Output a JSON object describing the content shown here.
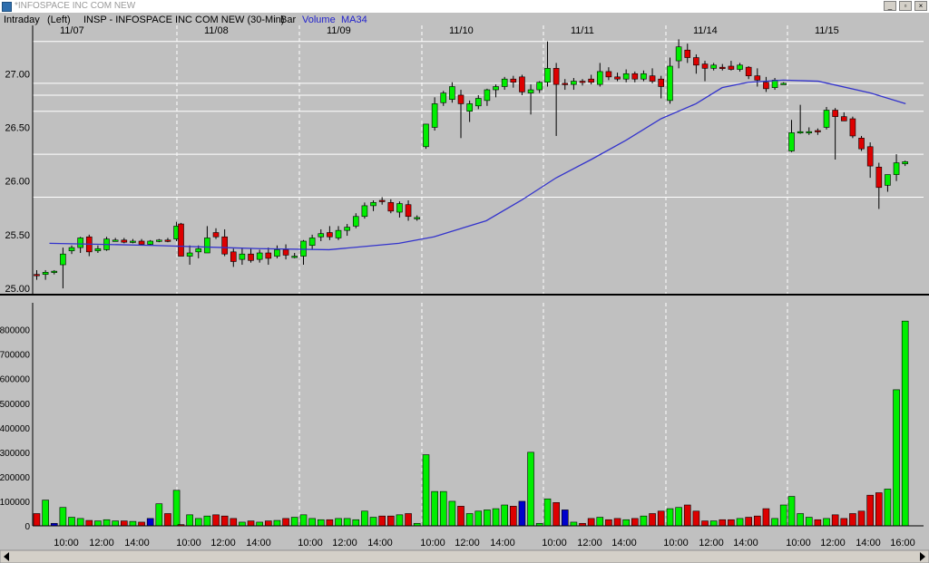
{
  "window": {
    "title": "*INFOSPACE INC COM NEW",
    "minimize_glyph": "_",
    "restore_glyph": "▫",
    "close_glyph": "×"
  },
  "header": {
    "interval": "Intraday",
    "axis_side": "(Left)",
    "symbol_text": "INSP - INFOSPACE INC COM NEW  (30-Min)",
    "bar_label": "Bar",
    "volume_label": "Volume",
    "ma_label": "MA34"
  },
  "colors": {
    "up": "#00ee00",
    "down": "#dd0000",
    "highlight": "#0000cc",
    "ma": "#3333cc",
    "background": "#c0c0c0",
    "gridline": "#ffffff"
  },
  "chart_data": [
    {
      "type": "candlestick",
      "title": "INSP - INFOSPACE INC COM NEW  (30-Min)",
      "ylim": [
        24.95,
        27.45
      ],
      "yticks": [
        "25.00",
        "25.50",
        "26.00",
        "26.50",
        "27.00"
      ],
      "date_labels": [
        "11/07",
        "11/08",
        "11/09",
        "11/10",
        "11/11",
        "11/14",
        "11/15"
      ],
      "horizontal_levels": [
        27.3,
        26.91,
        26.8,
        26.65,
        26.25,
        25.85
      ],
      "ma": {
        "name": "MA34",
        "points": [
          [
            0,
            25.42
          ],
          [
            12,
            25.4
          ],
          [
            24,
            25.37
          ],
          [
            32,
            25.36
          ],
          [
            40,
            25.42
          ],
          [
            44,
            25.48
          ],
          [
            50,
            25.63
          ],
          [
            54,
            25.82
          ],
          [
            58,
            26.03
          ],
          [
            62,
            26.2
          ],
          [
            66,
            26.38
          ],
          [
            70,
            26.58
          ],
          [
            74,
            26.72
          ],
          [
            77,
            26.87
          ],
          [
            80,
            26.92
          ],
          [
            84,
            26.94
          ],
          [
            88,
            26.93
          ],
          [
            94,
            26.82
          ],
          [
            98,
            26.72
          ]
        ]
      },
      "days": [
        {
          "date": "11/07",
          "bars": [
            [
              25.13,
              25.17,
              25.08,
              25.12
            ],
            [
              25.13,
              25.17,
              25.08,
              25.15
            ],
            [
              25.15,
              25.17,
              25.13,
              25.16
            ],
            [
              25.22,
              25.38,
              25.0,
              25.32
            ],
            [
              25.35,
              25.4,
              25.32,
              25.38
            ],
            [
              25.38,
              25.48,
              25.33,
              25.47
            ],
            [
              25.48,
              25.5,
              25.3,
              25.34
            ],
            [
              25.35,
              25.4,
              25.33,
              25.37
            ],
            [
              25.36,
              25.48,
              25.35,
              25.46
            ],
            [
              25.45,
              25.47,
              25.44,
              25.45
            ],
            [
              25.45,
              25.47,
              25.42,
              25.43
            ],
            [
              25.43,
              25.46,
              25.42,
              25.44
            ],
            [
              25.44,
              25.46,
              25.4,
              25.41
            ],
            [
              25.41,
              25.45,
              25.4,
              25.44
            ],
            [
              25.44,
              25.46,
              25.43,
              25.45
            ],
            [
              25.45,
              25.47,
              25.43,
              25.44
            ],
            [
              25.46,
              25.62,
              25.44,
              25.58
            ]
          ]
        },
        {
          "date": "11/08",
          "bars": [
            [
              25.6,
              25.61,
              25.3,
              25.3
            ],
            [
              25.3,
              25.4,
              25.22,
              25.33
            ],
            [
              25.34,
              25.4,
              25.28,
              25.37
            ],
            [
              25.33,
              25.58,
              25.33,
              25.47
            ],
            [
              25.52,
              25.56,
              25.46,
              25.48
            ],
            [
              25.48,
              25.55,
              25.3,
              25.32
            ],
            [
              25.34,
              25.37,
              25.2,
              25.25
            ],
            [
              25.27,
              25.38,
              25.22,
              25.32
            ],
            [
              25.32,
              25.37,
              25.24,
              25.26
            ],
            [
              25.27,
              25.36,
              25.24,
              25.33
            ],
            [
              25.33,
              25.38,
              25.22,
              25.28
            ],
            [
              25.3,
              25.4,
              25.28,
              25.36
            ],
            [
              25.36,
              25.41,
              25.27,
              25.31
            ],
            [
              25.3,
              25.33,
              25.28,
              25.3
            ]
          ]
        },
        {
          "date": "11/09",
          "bars": [
            [
              25.3,
              25.45,
              25.22,
              25.44
            ],
            [
              25.4,
              25.5,
              25.36,
              25.47
            ],
            [
              25.48,
              25.55,
              25.44,
              25.51
            ],
            [
              25.52,
              25.58,
              25.45,
              25.48
            ],
            [
              25.47,
              25.58,
              25.45,
              25.54
            ],
            [
              25.54,
              25.6,
              25.49,
              25.57
            ],
            [
              25.58,
              25.7,
              25.56,
              25.67
            ],
            [
              25.67,
              25.8,
              25.65,
              25.77
            ],
            [
              25.77,
              25.82,
              25.72,
              25.8
            ],
            [
              25.82,
              25.85,
              25.78,
              25.81
            ],
            [
              25.8,
              25.83,
              25.7,
              25.72
            ],
            [
              25.71,
              25.81,
              25.66,
              25.79
            ],
            [
              25.78,
              25.82,
              25.63,
              25.67
            ],
            [
              25.66,
              25.68,
              25.63,
              25.66
            ]
          ]
        },
        {
          "date": "11/10",
          "bars": [
            [
              26.32,
              26.53,
              26.3,
              26.53
            ],
            [
              26.5,
              26.78,
              26.47,
              26.72
            ],
            [
              26.73,
              26.84,
              26.7,
              26.82
            ],
            [
              26.76,
              26.92,
              26.73,
              26.88
            ],
            [
              26.8,
              26.85,
              26.4,
              26.72
            ],
            [
              26.65,
              26.75,
              26.55,
              26.72
            ],
            [
              26.7,
              26.8,
              26.67,
              26.77
            ],
            [
              26.75,
              26.86,
              26.7,
              26.85
            ],
            [
              26.85,
              26.9,
              26.78,
              26.88
            ],
            [
              26.88,
              26.97,
              26.85,
              26.95
            ],
            [
              26.95,
              26.98,
              26.87,
              26.92
            ],
            [
              26.97,
              26.99,
              26.8,
              26.83
            ],
            [
              26.82,
              26.9,
              26.62,
              26.85
            ],
            [
              26.85,
              26.93,
              26.82,
              26.92
            ]
          ]
        },
        {
          "date": "11/11",
          "bars": [
            [
              26.92,
              27.3,
              26.88,
              27.05
            ],
            [
              27.05,
              27.1,
              26.42,
              26.9
            ],
            [
              26.91,
              26.95,
              26.85,
              26.9
            ],
            [
              26.9,
              26.96,
              26.85,
              26.93
            ],
            [
              26.93,
              26.95,
              26.89,
              26.92
            ],
            [
              26.95,
              26.99,
              26.9,
              26.92
            ],
            [
              26.9,
              27.1,
              26.88,
              27.02
            ],
            [
              27.02,
              27.06,
              26.94,
              26.97
            ],
            [
              26.97,
              27.01,
              26.93,
              26.95
            ],
            [
              26.95,
              27.04,
              26.92,
              27.0
            ],
            [
              27.0,
              27.02,
              26.92,
              26.95
            ],
            [
              26.95,
              27.03,
              26.93,
              27.0
            ],
            [
              26.98,
              27.05,
              26.91,
              26.93
            ],
            [
              26.95,
              26.98,
              26.77,
              26.88
            ]
          ]
        },
        {
          "date": "11/14",
          "bars": [
            [
              26.75,
              27.15,
              26.72,
              27.07
            ],
            [
              27.12,
              27.32,
              27.05,
              27.25
            ],
            [
              27.22,
              27.28,
              27.1,
              27.15
            ],
            [
              27.15,
              27.18,
              27.0,
              27.08
            ],
            [
              27.09,
              27.12,
              26.93,
              27.05
            ],
            [
              27.05,
              27.1,
              27.03,
              27.08
            ],
            [
              27.06,
              27.09,
              27.03,
              27.05
            ],
            [
              27.07,
              27.12,
              27.03,
              27.04
            ],
            [
              27.04,
              27.1,
              27.02,
              27.08
            ],
            [
              27.06,
              27.07,
              26.95,
              26.98
            ],
            [
              26.98,
              27.05,
              26.88,
              26.94
            ],
            [
              26.92,
              26.97,
              26.83,
              26.86
            ],
            [
              26.87,
              26.96,
              26.85,
              26.94
            ],
            [
              26.91,
              26.92,
              26.9,
              26.91
            ]
          ]
        },
        {
          "date": "11/15",
          "bars": [
            [
              26.28,
              26.57,
              26.27,
              26.45
            ],
            [
              26.45,
              26.71,
              26.44,
              26.46
            ],
            [
              26.45,
              26.5,
              26.43,
              26.46
            ],
            [
              26.47,
              26.49,
              26.43,
              26.46
            ],
            [
              26.5,
              26.69,
              26.48,
              26.66
            ],
            [
              26.66,
              26.68,
              26.2,
              26.6
            ],
            [
              26.6,
              26.64,
              26.56,
              26.56
            ],
            [
              26.58,
              26.6,
              26.4,
              26.42
            ],
            [
              26.4,
              26.42,
              26.28,
              26.3
            ],
            [
              26.32,
              26.36,
              26.03,
              26.14
            ],
            [
              26.13,
              26.17,
              25.74,
              25.94
            ],
            [
              25.96,
              26.06,
              25.9,
              26.06
            ],
            [
              26.06,
              26.25,
              26.0,
              26.17
            ],
            [
              26.16,
              26.19,
              26.14,
              26.18
            ]
          ]
        }
      ]
    },
    {
      "type": "bar",
      "title": "Volume",
      "ylim": [
        0,
        880000
      ],
      "yticks": [
        "0",
        "100000",
        "200000",
        "300000",
        "400000",
        "500000",
        "600000",
        "700000",
        "800000"
      ],
      "xticks": [
        "10:00",
        "12:00",
        "14:00",
        "10:00",
        "12:00",
        "14:00",
        "10:00",
        "12:00",
        "14:00",
        "10:00",
        "12:00",
        "14:00",
        "10:00",
        "12:00",
        "14:00",
        "10:00",
        "12:00",
        "14:00",
        "10:00",
        "12:00",
        "14:00",
        "16:00"
      ],
      "highlight_bars": [
        [
          0,
          2
        ],
        [
          0,
          13
        ],
        [
          3,
          11
        ],
        [
          4,
          2
        ]
      ],
      "days": [
        {
          "date": "11/07",
          "values": [
            50000,
            105000,
            10000,
            75000,
            35000,
            30000,
            22000,
            20000,
            25000,
            20000,
            20000,
            18000,
            15000,
            30000,
            90000,
            50000,
            145000
          ]
        },
        {
          "date": "11/08",
          "values": [
            5000,
            45000,
            30000,
            40000,
            45000,
            40000,
            30000,
            15000,
            20000,
            15000,
            20000,
            22000,
            30000,
            35000
          ]
        },
        {
          "date": "11/09",
          "values": [
            45000,
            30000,
            25000,
            25000,
            30000,
            30000,
            25000,
            60000,
            35000,
            40000,
            40000,
            45000,
            50000,
            10000
          ]
        },
        {
          "date": "11/10",
          "values": [
            290000,
            140000,
            140000,
            100000,
            80000,
            50000,
            60000,
            65000,
            70000,
            85000,
            80000,
            100000,
            300000,
            10000
          ]
        },
        {
          "date": "11/11",
          "values": [
            110000,
            95000,
            65000,
            15000,
            10000,
            30000,
            35000,
            25000,
            30000,
            25000,
            30000,
            40000,
            50000,
            60000
          ]
        },
        {
          "date": "11/14",
          "values": [
            70000,
            75000,
            85000,
            60000,
            20000,
            20000,
            25000,
            25000,
            30000,
            35000,
            40000,
            70000,
            30000,
            85000
          ]
        },
        {
          "date": "11/15",
          "values": [
            120000,
            50000,
            35000,
            25000,
            30000,
            45000,
            30000,
            50000,
            60000,
            125000,
            135000,
            150000,
            555000,
            835000
          ]
        }
      ]
    }
  ]
}
